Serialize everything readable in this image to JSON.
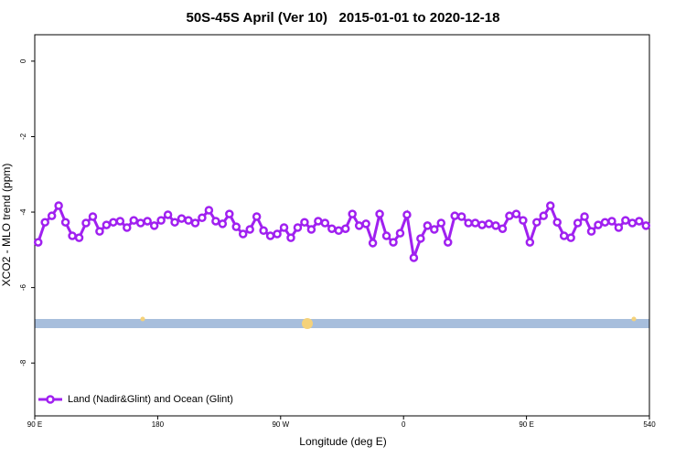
{
  "chart_data": {
    "type": "line",
    "title": "50S-45S April (Ver 10)   2015-01-01 to 2020-12-18",
    "x_label": "Longitude (deg E)",
    "y_label": "XCO2 - MLO trend (ppm)",
    "x": [
      92.5,
      97.5,
      102.5,
      107.5,
      112.5,
      117.5,
      122.5,
      127.5,
      132.5,
      137.5,
      142.5,
      147.5,
      152.5,
      157.5,
      162.5,
      167.5,
      172.5,
      177.5,
      182.5,
      187.5,
      192.5,
      197.5,
      202.5,
      207.5,
      212.5,
      217.5,
      222.5,
      227.5,
      232.5,
      237.5,
      242.5,
      247.5,
      252.5,
      257.5,
      262.5,
      267.5,
      272.5,
      277.5,
      282.5,
      287.5,
      292.5,
      297.5,
      302.5,
      307.5,
      312.5,
      317.5,
      322.5,
      327.5,
      332.5,
      337.5,
      342.5,
      347.5,
      352.5,
      357.5,
      362.5,
      367.5,
      372.5,
      377.5,
      382.5,
      387.5,
      392.5,
      397.5,
      402.5,
      407.5,
      412.5,
      417.5,
      422.5,
      427.5,
      432.5,
      437.5,
      442.5,
      447.5,
      452.5,
      457.5,
      462.5,
      467.5,
      472.5,
      477.5,
      482.5,
      487.5,
      492.5,
      497.5,
      502.5,
      507.5,
      512.5,
      517.5,
      522.5,
      527.5,
      532.5,
      537.5
    ],
    "series": [
      {
        "name": "Land (Nadir&Glint) and Ocean (Glint)",
        "color": "#a020f0",
        "values": [
          -4.8,
          -4.27,
          -4.1,
          -3.83,
          -4.27,
          -4.63,
          -4.68,
          -4.29,
          -4.12,
          -4.51,
          -4.34,
          -4.27,
          -4.24,
          -4.41,
          -4.22,
          -4.29,
          -4.24,
          -4.36,
          -4.22,
          -4.07,
          -4.27,
          -4.17,
          -4.22,
          -4.29,
          -4.15,
          -3.95,
          -4.24,
          -4.31,
          -4.05,
          -4.39,
          -4.58,
          -4.46,
          -4.12,
          -4.49,
          -4.63,
          -4.58,
          -4.41,
          -4.68,
          -4.41,
          -4.27,
          -4.46,
          -4.24,
          -4.29,
          -4.44,
          -4.49,
          -4.44,
          -4.05,
          -4.36,
          -4.31,
          -4.82,
          -4.05,
          -4.63,
          -4.8,
          -4.56,
          -4.07,
          -5.21,
          -4.7,
          -4.36,
          -4.46,
          -4.29,
          -4.8,
          -4.1,
          -4.12,
          -4.29,
          -4.29,
          -4.34,
          -4.31,
          -4.36,
          -4.44,
          -4.1,
          -4.05,
          -4.22,
          -4.8,
          -4.27,
          -4.1,
          -3.83,
          -4.27,
          -4.63,
          -4.68,
          -4.29,
          -4.12,
          -4.51,
          -4.34,
          -4.27,
          -4.24,
          -4.41,
          -4.22,
          -4.29,
          -4.24,
          -4.36
        ]
      }
    ],
    "xlim": [
      90,
      540
    ],
    "xticks": [
      {
        "value": 90,
        "label": "90 E"
      },
      180,
      {
        "value": 270,
        "label": "90 W"
      },
      {
        "value": 360,
        "label": "0"
      },
      {
        "value": 450,
        "label": "90 E"
      },
      540
    ],
    "ylim": [
      -9.4,
      0.7
    ],
    "yticks": [
      -8,
      -6,
      -4,
      -2,
      0
    ],
    "legend": "bottom-left"
  }
}
